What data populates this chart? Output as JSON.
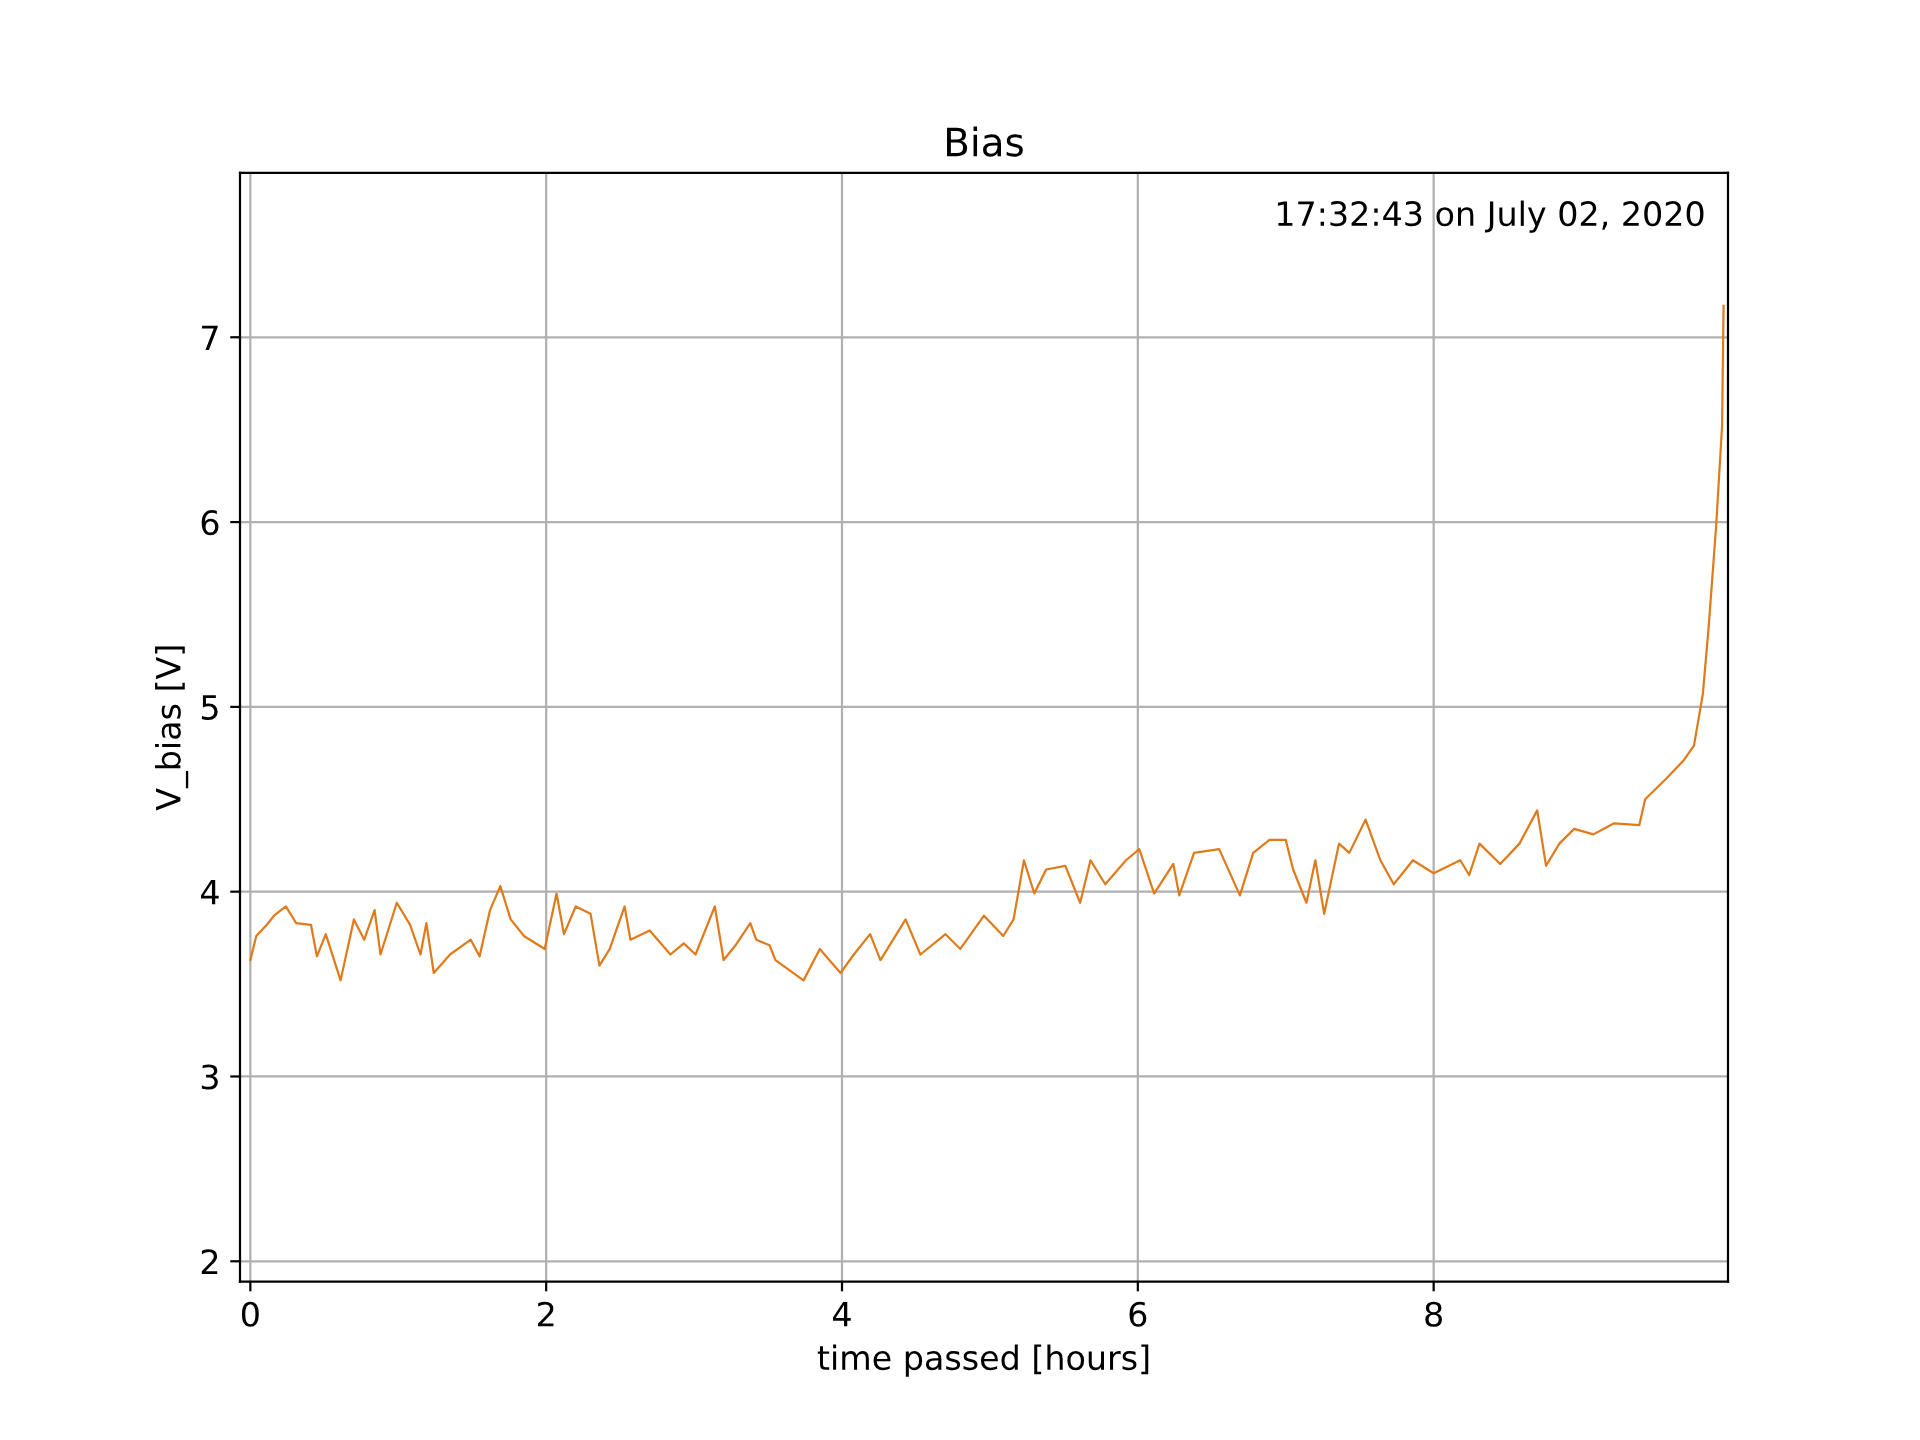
{
  "chart_data": {
    "type": "line",
    "title": "Bias",
    "xlabel": "time passed [hours]",
    "ylabel": "V_bias [V]",
    "annotations": [
      "17:32:43 on July 02, 2020"
    ],
    "xlim": [
      -0.07,
      9.99
    ],
    "ylim": [
      1.89,
      7.89
    ],
    "xticks": [
      0,
      2,
      4,
      6,
      8
    ],
    "yticks": [
      2,
      3,
      4,
      5,
      6,
      7
    ],
    "grid": true,
    "series": [
      {
        "color": "#e07b1c",
        "x": [
          0.0,
          0.04,
          0.11,
          0.16,
          0.24,
          0.31,
          0.41,
          0.45,
          0.51,
          0.61,
          0.7,
          0.77,
          0.84,
          0.88,
          0.99,
          1.08,
          1.15,
          1.19,
          1.24,
          1.35,
          1.49,
          1.55,
          1.62,
          1.69,
          1.76,
          1.85,
          1.99,
          2.07,
          2.12,
          2.2,
          2.3,
          2.36,
          2.43,
          2.53,
          2.57,
          2.7,
          2.84,
          2.93,
          3.01,
          3.14,
          3.2,
          3.28,
          3.38,
          3.42,
          3.51,
          3.55,
          3.74,
          3.85,
          3.99,
          4.08,
          4.19,
          4.26,
          4.43,
          4.53,
          4.7,
          4.8,
          4.96,
          5.09,
          5.16,
          5.23,
          5.3,
          5.38,
          5.51,
          5.61,
          5.68,
          5.78,
          5.92,
          6.01,
          6.11,
          6.24,
          6.28,
          6.38,
          6.55,
          6.69,
          6.78,
          6.89,
          7.0,
          7.05,
          7.14,
          7.2,
          7.26,
          7.36,
          7.43,
          7.54,
          7.64,
          7.73,
          7.86,
          8.0,
          8.18,
          8.24,
          8.31,
          8.45,
          8.58,
          8.7,
          8.76,
          8.85,
          8.95,
          9.08,
          9.22,
          9.39,
          9.43,
          9.57,
          9.69,
          9.76,
          9.82,
          9.86,
          9.91,
          9.95,
          9.96
        ],
        "values": [
          3.63,
          3.76,
          3.82,
          3.87,
          3.92,
          3.83,
          3.82,
          3.65,
          3.77,
          3.52,
          3.85,
          3.74,
          3.9,
          3.66,
          3.94,
          3.82,
          3.66,
          3.83,
          3.56,
          3.66,
          3.74,
          3.65,
          3.9,
          4.03,
          3.85,
          3.76,
          3.69,
          3.99,
          3.77,
          3.92,
          3.88,
          3.6,
          3.69,
          3.92,
          3.74,
          3.79,
          3.66,
          3.72,
          3.66,
          3.92,
          3.63,
          3.71,
          3.83,
          3.74,
          3.71,
          3.63,
          3.52,
          3.69,
          3.56,
          3.66,
          3.77,
          3.63,
          3.85,
          3.66,
          3.77,
          3.69,
          3.87,
          3.76,
          3.85,
          4.17,
          3.99,
          4.12,
          4.14,
          3.94,
          4.17,
          4.04,
          4.17,
          4.23,
          3.99,
          4.15,
          3.98,
          4.21,
          4.23,
          3.98,
          4.21,
          4.28,
          4.28,
          4.12,
          3.94,
          4.17,
          3.88,
          4.26,
          4.21,
          4.39,
          4.17,
          4.04,
          4.17,
          4.1,
          4.17,
          4.09,
          4.26,
          4.15,
          4.26,
          4.44,
          4.14,
          4.26,
          4.34,
          4.31,
          4.37,
          4.36,
          4.5,
          4.61,
          4.71,
          4.79,
          5.07,
          5.44,
          5.98,
          6.52,
          7.17
        ]
      }
    ]
  }
}
